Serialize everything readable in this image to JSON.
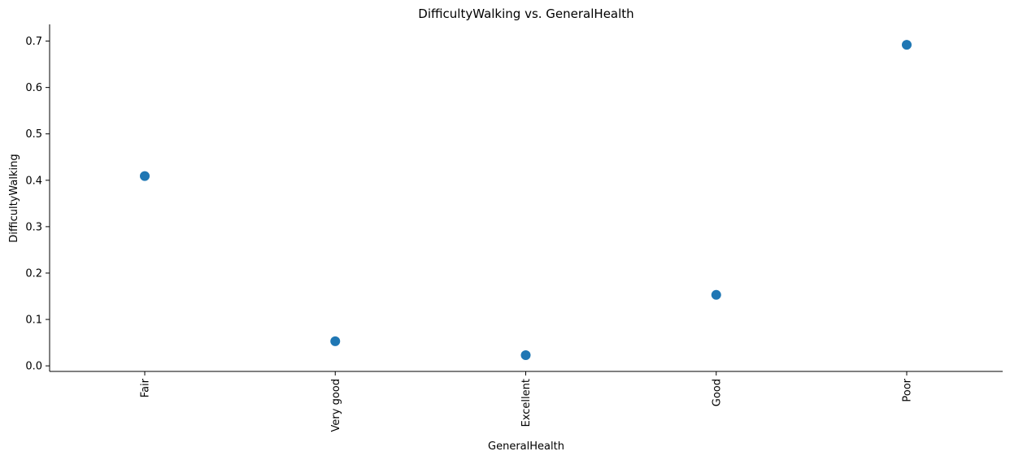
{
  "chart_data": {
    "type": "scatter",
    "title": "DifficultyWalking vs. GeneralHealth",
    "xlabel": "GeneralHealth",
    "ylabel": "DifficultyWalking",
    "categories": [
      "Fair",
      "Very good",
      "Excellent",
      "Good",
      "Poor"
    ],
    "values": [
      0.409,
      0.053,
      0.023,
      0.153,
      0.692
    ],
    "error_bars": [
      [
        0.404,
        0.414
      ],
      [
        0.051,
        0.055
      ],
      [
        0.022,
        0.024
      ],
      [
        0.151,
        0.155
      ],
      [
        0.684,
        0.702
      ]
    ],
    "yticks": [
      "0.0",
      "0.1",
      "0.2",
      "0.3",
      "0.4",
      "0.5",
      "0.6",
      "0.7"
    ],
    "ylim": [
      -0.012,
      0.736
    ],
    "grid": false,
    "color": "#1f77b4",
    "axis_color": "#000000"
  }
}
